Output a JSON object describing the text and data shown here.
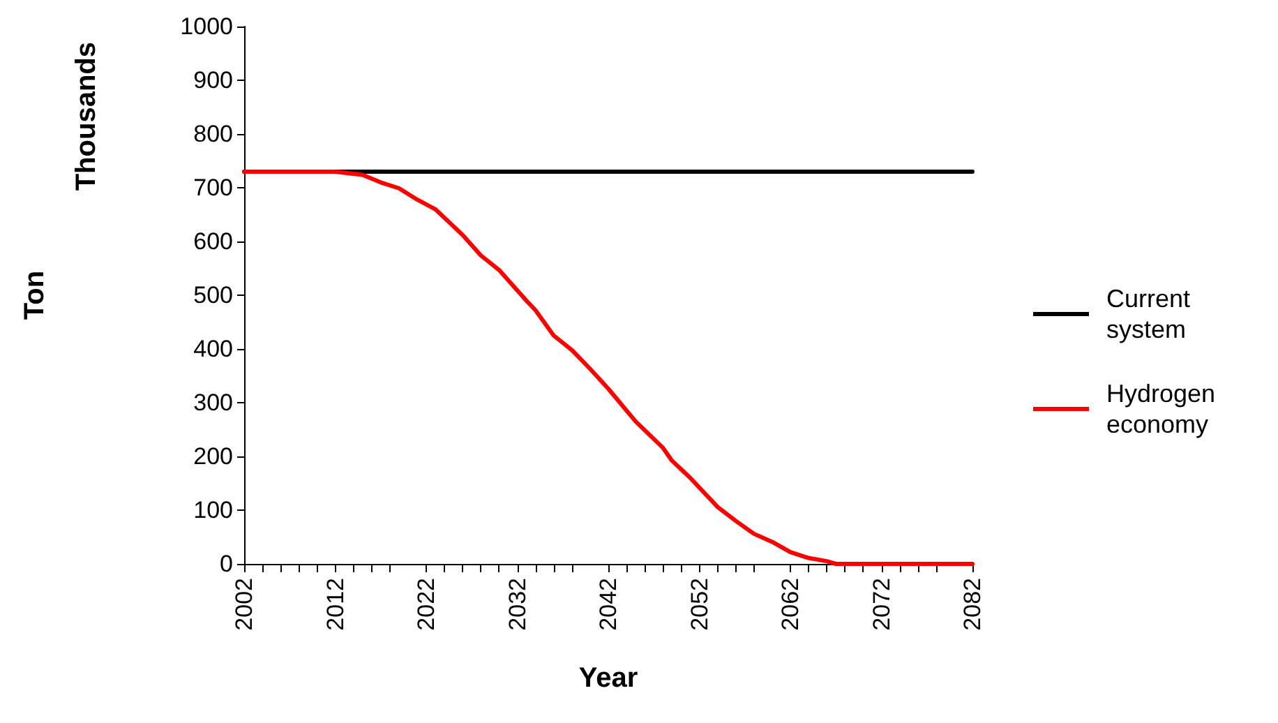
{
  "chart_data": {
    "type": "line",
    "xlabel": "Year",
    "ylabel": "Ton",
    "annotations": [
      "Thousands"
    ],
    "xlim": [
      2002,
      2082
    ],
    "xticks": [
      2002,
      2012,
      2022,
      2032,
      2042,
      2052,
      2062,
      2072,
      2082
    ],
    "ylim": [
      0,
      1000
    ],
    "yticks": [
      0,
      100,
      200,
      300,
      400,
      500,
      600,
      700,
      800,
      900,
      1000
    ],
    "grid": false,
    "legend": "right",
    "marker": "none",
    "line_style": "solid",
    "series": [
      {
        "name": "Current system",
        "color": "#000000",
        "x": [
          2002,
          2082
        ],
        "values": [
          730,
          730
        ]
      },
      {
        "name": "Hydrogen economy",
        "color": "#ff0000",
        "x": [
          2002,
          2012,
          2015,
          2017,
          2019,
          2021,
          2023,
          2025,
          2026,
          2028,
          2030,
          2033,
          2034,
          2036,
          2038,
          2040,
          2042,
          2045,
          2048,
          2049,
          2051,
          2054,
          2056,
          2058,
          2060,
          2062,
          2064,
          2066,
          2067,
          2082
        ],
        "values": [
          730,
          730,
          724,
          710,
          699,
          678,
          660,
          628,
          612,
          574,
          547,
          490,
          472,
          425,
          398,
          363,
          326,
          265,
          216,
          192,
          160,
          106,
          80,
          56,
          41,
          22,
          11,
          5,
          0,
          0
        ]
      }
    ]
  }
}
